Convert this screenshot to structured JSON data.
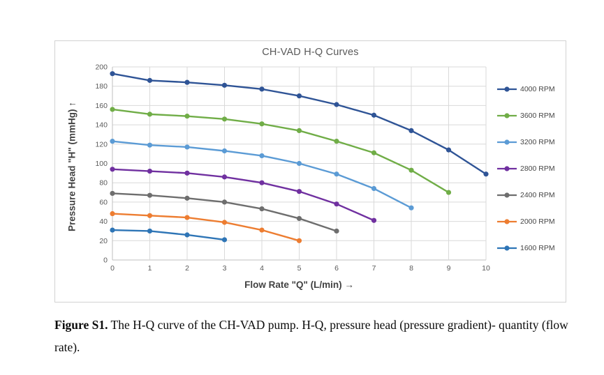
{
  "chart_data": {
    "type": "line",
    "title": "CH-VAD H-Q Curves",
    "xlabel": "Flow Rate \"Q\"  (L/min)  →",
    "ylabel": "Pressure Head \"H\"  (mmHg)  ↑",
    "xlim": [
      0,
      10
    ],
    "ylim": [
      0,
      200
    ],
    "x_ticks": [
      0,
      1,
      2,
      3,
      4,
      5,
      6,
      7,
      8,
      9,
      10
    ],
    "y_ticks": [
      0,
      20,
      40,
      60,
      80,
      100,
      120,
      140,
      160,
      180,
      200
    ],
    "grid": true,
    "legend_position": "right",
    "series": [
      {
        "name": "4000 RPM",
        "color": "#2F5496",
        "x": [
          0,
          1,
          2,
          3,
          4,
          5,
          6,
          7,
          8,
          9,
          10
        ],
        "values": [
          193,
          186,
          184,
          181,
          177,
          170,
          161,
          150,
          134,
          114,
          89
        ]
      },
      {
        "name": "3600 RPM",
        "color": "#70AD47",
        "x": [
          0,
          1,
          2,
          3,
          4,
          5,
          6,
          7,
          8,
          9
        ],
        "values": [
          156,
          151,
          149,
          146,
          141,
          134,
          123,
          111,
          93,
          70
        ]
      },
      {
        "name": "3200 RPM",
        "color": "#5B9BD5",
        "x": [
          0,
          1,
          2,
          3,
          4,
          5,
          6,
          7,
          8
        ],
        "values": [
          123,
          119,
          117,
          113,
          108,
          100,
          89,
          74,
          54
        ]
      },
      {
        "name": "2800 RPM",
        "color": "#7030A0",
        "x": [
          0,
          1,
          2,
          3,
          4,
          5,
          6,
          7
        ],
        "values": [
          94,
          92,
          90,
          86,
          80,
          71,
          58,
          41
        ]
      },
      {
        "name": "2400 RPM",
        "color": "#6E6E6E",
        "x": [
          0,
          1,
          2,
          3,
          4,
          5,
          6
        ],
        "values": [
          69,
          67,
          64,
          60,
          53,
          43,
          30
        ]
      },
      {
        "name": "2000 RPM",
        "color": "#ED7D31",
        "x": [
          0,
          1,
          2,
          3,
          4,
          5
        ],
        "values": [
          48,
          46,
          44,
          39,
          31,
          20
        ]
      },
      {
        "name": "1600 RPM",
        "color": "#2E75B6",
        "x": [
          0,
          1,
          2,
          3
        ],
        "values": [
          31,
          30,
          26,
          21
        ]
      }
    ],
    "style": {
      "gridline_color": "#D9D9D9",
      "axis_line_color": "#BFBFBF",
      "tick_label_color": "#595959",
      "title_color": "#595959"
    }
  },
  "caption": {
    "label": "Figure S1.",
    "text": " The H-Q curve of the CH-VAD pump. H-Q, pressure head (pressure gradient)- quantity (flow rate)."
  }
}
